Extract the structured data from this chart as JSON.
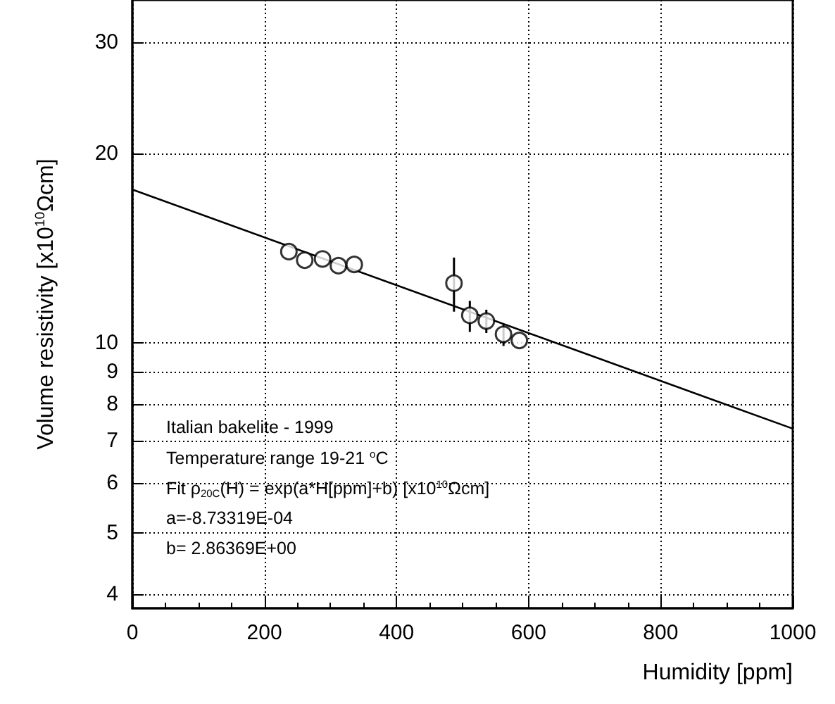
{
  "chart_data": {
    "type": "scatter",
    "xlabel": "Humidity [ppm]",
    "ylabel": "Volume resistivity [x10$^{10}$Ωcm]",
    "xlim": [
      0,
      1000
    ],
    "xticks": [
      0,
      200,
      400,
      600,
      800,
      1000
    ],
    "ylim": [
      3.8,
      35
    ],
    "yticks": [
      4,
      5,
      6,
      7,
      8,
      9,
      10,
      20,
      30
    ],
    "log": "y",
    "grid": true,
    "marker": "circle",
    "series": [
      {
        "type": "scatter",
        "color": "#000000",
        "x": [
          237,
          261,
          288,
          312,
          336,
          487,
          511,
          536,
          562,
          586
        ],
        "values": [
          13.97,
          13.54,
          13.6,
          13.27,
          13.33,
          12.45,
          11.07,
          10.84,
          10.33,
          10.1
        ],
        "errors": [
          null,
          null,
          null,
          null,
          null,
          [
            11.22,
            13.67
          ],
          [
            10.42,
            11.67
          ],
          [
            10.38,
            11.3
          ],
          [
            9.9,
            10.7
          ],
          null
        ]
      },
      {
        "type": "line",
        "color": "#000000",
        "marker": "none",
        "x": [
          0,
          1000
        ],
        "values": [
          17.52,
          7.32
        ]
      }
    ],
    "annotations": [
      "Italian bakelite - 1999",
      "Temperature range 19-21 $^{o}$C",
      "Fit ρ$_{20C}$(H) = exp(a*H[ppm]+b) [x10$^{10}$Ωcm]",
      "a=-8.73319E-04",
      "b= 2.86369E+00"
    ]
  }
}
